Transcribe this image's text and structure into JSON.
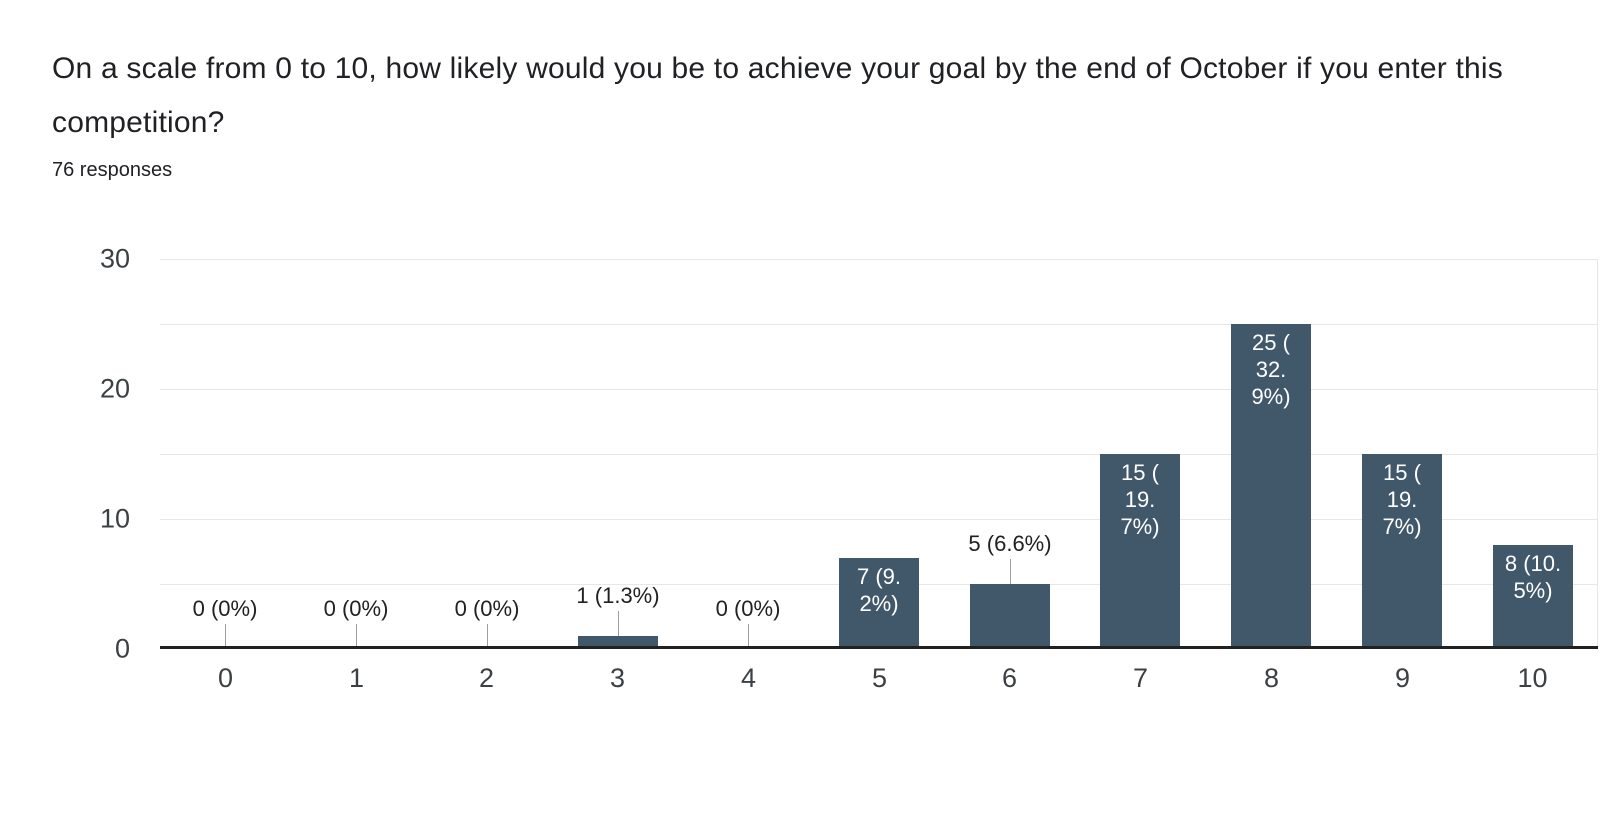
{
  "chart_data": {
    "type": "bar",
    "title": "On a scale from 0 to 10, how likely would you be to achieve your goal by the end of October if you enter this competition?",
    "subtitle": "76 responses",
    "categories": [
      "0",
      "1",
      "2",
      "3",
      "4",
      "5",
      "6",
      "7",
      "8",
      "9",
      "10"
    ],
    "values": [
      0,
      0,
      0,
      1,
      0,
      7,
      5,
      15,
      25,
      15,
      8
    ],
    "bar_labels": [
      "0 (0%)",
      "0 (0%)",
      "0 (0%)",
      "1 (1.3%)",
      "0 (0%)",
      "7 (9.2%)",
      "5 (6.6%)",
      "15 (19.7%)",
      "25 (32.9%)",
      "15 (19.7%)",
      "8 (10.5%)"
    ],
    "bar_label_lines": [
      [
        "0 (0%)"
      ],
      [
        "0 (0%)"
      ],
      [
        "0 (0%)"
      ],
      [
        "1 (1.3%)"
      ],
      [
        "0 (0%)"
      ],
      [
        "7 (9.",
        "2%)"
      ],
      [
        "5 (6.6%)"
      ],
      [
        "15 (",
        "19.",
        "7%)"
      ],
      [
        "25 (",
        "32.",
        "9%)"
      ],
      [
        "15 (",
        "19.",
        "7%)"
      ],
      [
        "8 (10.",
        "5%)"
      ]
    ],
    "bar_label_placement": [
      "above",
      "above",
      "above",
      "above",
      "above",
      "inside",
      "above",
      "inside",
      "inside",
      "inside",
      "inside"
    ],
    "xlabel": "",
    "ylabel": "",
    "ylim": [
      0,
      30
    ],
    "yticks": [
      0,
      10,
      20,
      30
    ],
    "gridline_values": [
      5,
      10,
      15,
      20,
      25,
      30
    ],
    "grid": true,
    "legend_position": "none",
    "colors": {
      "bar": "#41586a",
      "grid": "#e7e7e7",
      "axis": "#212121",
      "stem": "#9e9e9e",
      "label_inside": "#ffffff",
      "label_outside": "#212121",
      "title_text": "#202124",
      "tick_text": "#3c4043"
    }
  }
}
